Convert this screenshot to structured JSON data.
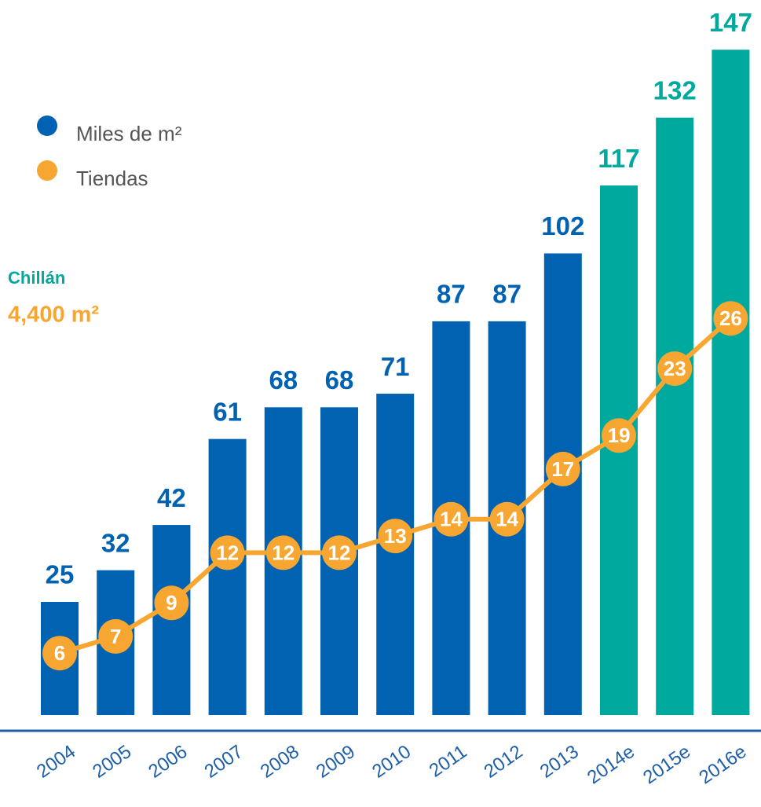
{
  "chart_data": {
    "type": "bar",
    "categories": [
      "2004",
      "2005",
      "2006",
      "2007",
      "2008",
      "2009",
      "2010",
      "2011",
      "2012",
      "2013",
      "2014e",
      "2015e",
      "2016e"
    ],
    "series": [
      {
        "name": "Miles de m²",
        "type": "bar",
        "color": "#0062b1",
        "point_colors": [
          "#0062b1",
          "#0062b1",
          "#0062b1",
          "#0062b1",
          "#0062b1",
          "#0062b1",
          "#0062b1",
          "#0062b1",
          "#0062b1",
          "#0062b1",
          "#00a99d",
          "#00a99d",
          "#00a99d"
        ],
        "values": [
          25,
          32,
          42,
          61,
          68,
          68,
          71,
          87,
          87,
          102,
          117,
          132,
          147
        ]
      },
      {
        "name": "Tiendas",
        "type": "line",
        "color": "#f7a631",
        "values": [
          6,
          7,
          9,
          12,
          12,
          12,
          13,
          14,
          14,
          17,
          19,
          23,
          26
        ]
      }
    ],
    "annotations": [
      {
        "text": "Chillán",
        "color": "#00a99d"
      },
      {
        "text": "4,400 m²",
        "color": "#f7a631"
      }
    ],
    "axis_color": "#1f5fa8"
  }
}
